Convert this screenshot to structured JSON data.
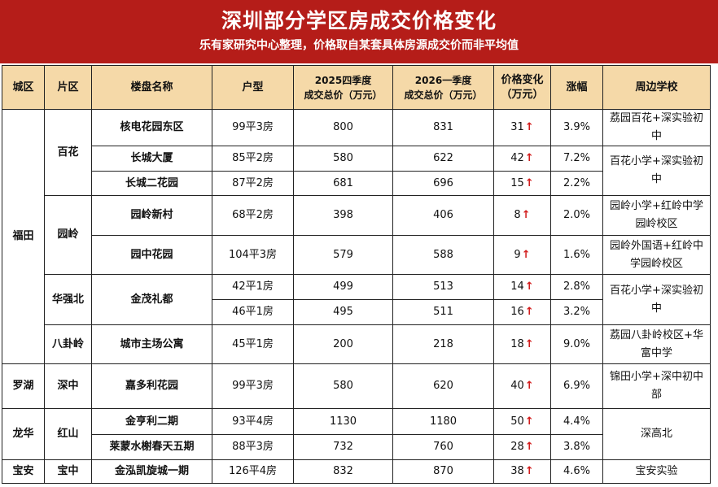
{
  "title": "深圳部分学区房成交价格变化",
  "subtitle": "乐有家研究中心整理，价格取自某套具体房源成交价而非平均值",
  "up_arrow": "↑",
  "headers": {
    "city": "城区",
    "area": "片区",
    "estate": "楼盘名称",
    "layout": "户型",
    "q4_2025": "2025四季度\n成交总价（万元）",
    "q1_2026": "2026一季度\n成交总价（万元）",
    "change": "价格变化\n（万元）",
    "pct": "涨幅",
    "school": "周边学校"
  },
  "groups": {
    "futian": "福田",
    "luohu": "罗湖",
    "longhua": "龙华",
    "baoan": "宝安"
  },
  "areas": {
    "baihua": "百花",
    "yuanling": "园岭",
    "huaqiangbei": "华强北",
    "baguaLing": "八卦岭",
    "shenzhong": "深中",
    "hongshan": "红山",
    "baozhong": "宝中"
  },
  "rows": [
    {
      "estate": "核电花园东区",
      "layout": "99平3房",
      "q4": "800",
      "q1": "831",
      "change": "31",
      "pct": "3.9%"
    },
    {
      "estate": "长城大厦",
      "layout": "85平2房",
      "q4": "580",
      "q1": "622",
      "change": "42",
      "pct": "7.2%"
    },
    {
      "estate": "长城二花园",
      "layout": "87平2房",
      "q4": "681",
      "q1": "696",
      "change": "15",
      "pct": "2.2%"
    },
    {
      "estate": "园岭新村",
      "layout": "68平2房",
      "q4": "398",
      "q1": "406",
      "change": "8",
      "pct": "2.0%"
    },
    {
      "estate": "园中花园",
      "layout": "104平3房",
      "q4": "579",
      "q1": "588",
      "change": "9",
      "pct": "1.6%"
    },
    {
      "estate": "金茂礼都",
      "layout": "42平1房",
      "q4": "499",
      "q1": "513",
      "change": "14",
      "pct": "2.8%"
    },
    {
      "estate": "",
      "layout": "46平1房",
      "q4": "495",
      "q1": "511",
      "change": "16",
      "pct": "3.2%"
    },
    {
      "estate": "城市主场公寓",
      "layout": "45平1房",
      "q4": "200",
      "q1": "218",
      "change": "18",
      "pct": "9.0%"
    },
    {
      "estate": "嘉多利花园",
      "layout": "99平3房",
      "q4": "580",
      "q1": "620",
      "change": "40",
      "pct": "6.9%"
    },
    {
      "estate": "金亨利二期",
      "layout": "93平4房",
      "q4": "1130",
      "q1": "1180",
      "change": "50",
      "pct": "4.4%"
    },
    {
      "estate": "莱蒙水榭春天五期",
      "layout": "88平3房",
      "q4": "732",
      "q1": "760",
      "change": "28",
      "pct": "3.8%"
    },
    {
      "estate": "金泓凯旋城一期",
      "layout": "126平4房",
      "q4": "832",
      "q1": "870",
      "change": "38",
      "pct": "4.6%"
    }
  ],
  "schools": {
    "s1": "荔园百花+深实验初中",
    "s2": "百花小学+深实验初中",
    "s3": "园岭小学+红岭中学园岭校区",
    "s4": "园岭外国语+红岭中学园岭校区",
    "s5": "百花小学+深实验初中",
    "s6": "荔园八卦岭校区+华富中学",
    "s7": "锦田小学+深中初中部",
    "s8": "深高北",
    "s9": "宝安实验"
  }
}
